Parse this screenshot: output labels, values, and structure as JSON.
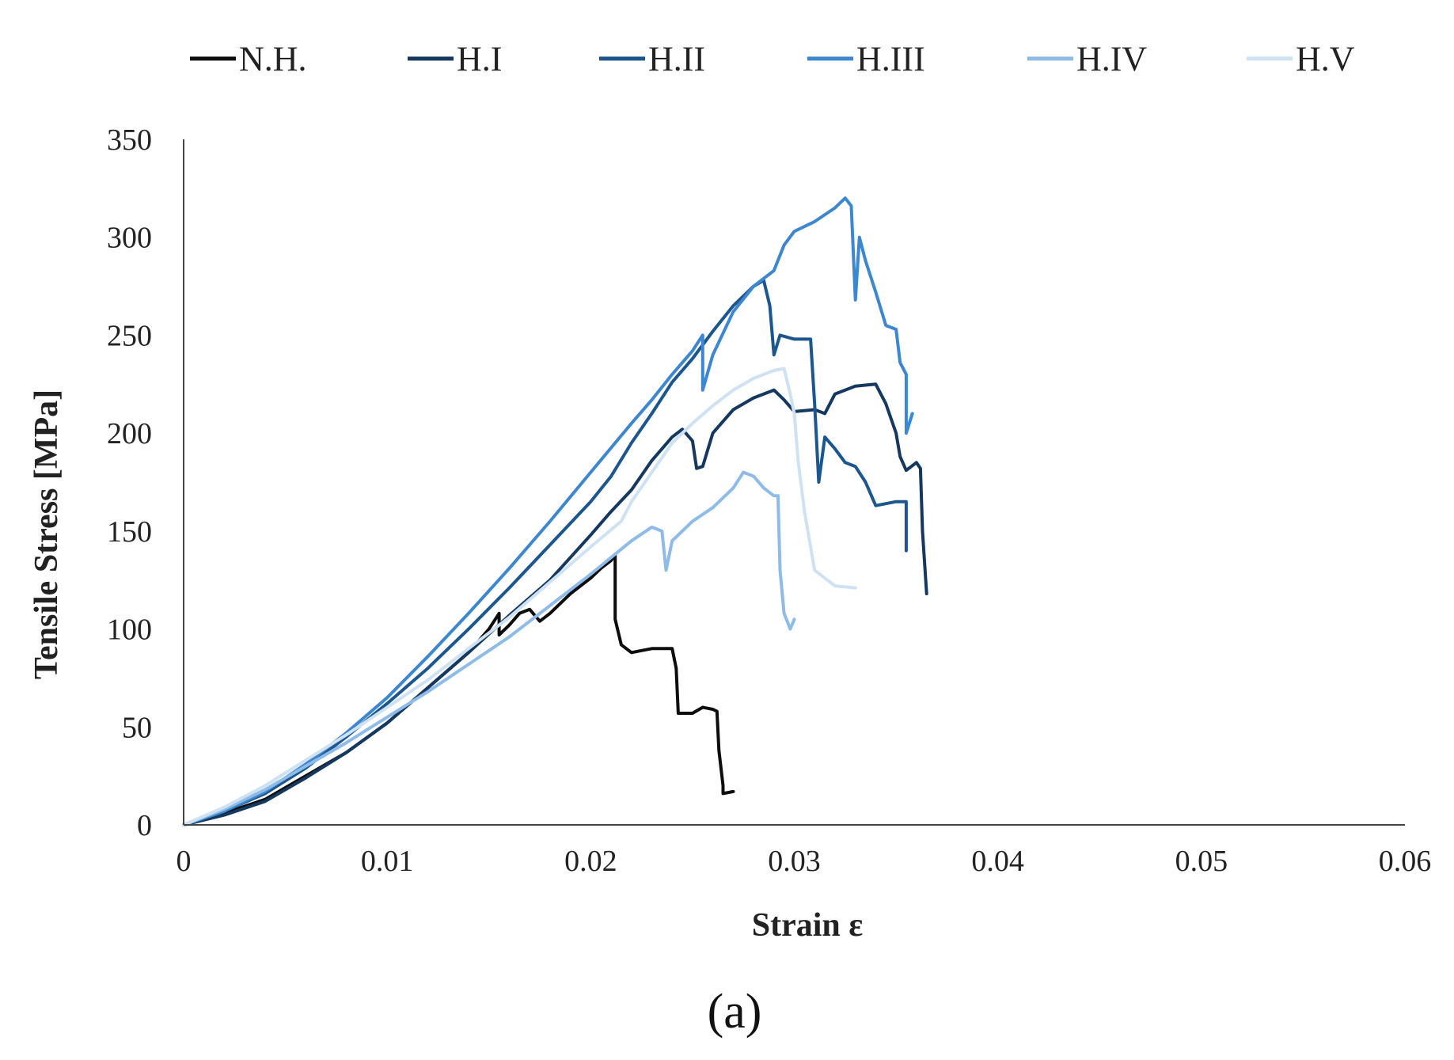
{
  "panel_label": "(a)",
  "chart_data": {
    "type": "line",
    "title": "",
    "xlabel": "Strain ε",
    "ylabel": "Tensile Stress [MPa]",
    "xlim": [
      0,
      0.06
    ],
    "ylim": [
      0,
      350
    ],
    "xticks": [
      0,
      0.01,
      0.02,
      0.03,
      0.04,
      0.05,
      0.06
    ],
    "xtick_labels": [
      "0",
      "0.01",
      "0.02",
      "0.03",
      "0.04",
      "0.05",
      "0.06"
    ],
    "yticks": [
      0,
      50,
      100,
      150,
      200,
      250,
      300,
      350
    ],
    "ytick_labels": [
      "0",
      "50",
      "100",
      "150",
      "200",
      "250",
      "300",
      "350"
    ],
    "grid": false,
    "legend_position": "top",
    "series": [
      {
        "name": "N.H.",
        "color": "#0d0d0d",
        "points": [
          [
            0,
            0
          ],
          [
            0.002,
            6
          ],
          [
            0.004,
            13
          ],
          [
            0.006,
            25
          ],
          [
            0.008,
            37
          ],
          [
            0.01,
            52
          ],
          [
            0.012,
            70
          ],
          [
            0.014,
            88
          ],
          [
            0.015,
            100
          ],
          [
            0.0155,
            108
          ],
          [
            0.0155,
            97
          ],
          [
            0.016,
            102
          ],
          [
            0.0165,
            108
          ],
          [
            0.017,
            110
          ],
          [
            0.0175,
            104
          ],
          [
            0.018,
            108
          ],
          [
            0.019,
            118
          ],
          [
            0.02,
            126
          ],
          [
            0.0205,
            131
          ],
          [
            0.021,
            135
          ],
          [
            0.0212,
            138
          ],
          [
            0.0212,
            105
          ],
          [
            0.0215,
            92
          ],
          [
            0.022,
            88
          ],
          [
            0.023,
            90
          ],
          [
            0.024,
            90
          ],
          [
            0.0242,
            80
          ],
          [
            0.0243,
            57
          ],
          [
            0.025,
            57
          ],
          [
            0.0255,
            60
          ],
          [
            0.026,
            59
          ],
          [
            0.0262,
            58
          ],
          [
            0.0263,
            38
          ],
          [
            0.0265,
            20
          ],
          [
            0.0265,
            16
          ],
          [
            0.027,
            17
          ]
        ]
      },
      {
        "name": "H.I",
        "color": "#14385f",
        "points": [
          [
            0,
            0
          ],
          [
            0.002,
            5
          ],
          [
            0.004,
            12
          ],
          [
            0.006,
            24
          ],
          [
            0.008,
            37
          ],
          [
            0.01,
            52
          ],
          [
            0.012,
            70
          ],
          [
            0.014,
            88
          ],
          [
            0.016,
            107
          ],
          [
            0.018,
            125
          ],
          [
            0.02,
            148
          ],
          [
            0.021,
            160
          ],
          [
            0.022,
            171
          ],
          [
            0.023,
            186
          ],
          [
            0.024,
            198
          ],
          [
            0.0245,
            202
          ],
          [
            0.025,
            196
          ],
          [
            0.0252,
            182
          ],
          [
            0.0255,
            183
          ],
          [
            0.026,
            200
          ],
          [
            0.027,
            212
          ],
          [
            0.028,
            218
          ],
          [
            0.029,
            222
          ],
          [
            0.0295,
            217
          ],
          [
            0.03,
            211
          ],
          [
            0.031,
            212
          ],
          [
            0.0315,
            210
          ],
          [
            0.032,
            220
          ],
          [
            0.033,
            224
          ],
          [
            0.034,
            225
          ],
          [
            0.0345,
            215
          ],
          [
            0.035,
            200
          ],
          [
            0.0352,
            188
          ],
          [
            0.0355,
            181
          ],
          [
            0.036,
            185
          ],
          [
            0.0362,
            182
          ],
          [
            0.0363,
            150
          ],
          [
            0.0365,
            118
          ]
        ]
      },
      {
        "name": "H.II",
        "color": "#1c568f",
        "points": [
          [
            0,
            0
          ],
          [
            0.002,
            7
          ],
          [
            0.004,
            16
          ],
          [
            0.006,
            29
          ],
          [
            0.008,
            45
          ],
          [
            0.01,
            62
          ],
          [
            0.012,
            80
          ],
          [
            0.014,
            100
          ],
          [
            0.016,
            121
          ],
          [
            0.018,
            143
          ],
          [
            0.02,
            165
          ],
          [
            0.021,
            178
          ],
          [
            0.022,
            195
          ],
          [
            0.023,
            210
          ],
          [
            0.024,
            226
          ],
          [
            0.025,
            238
          ],
          [
            0.026,
            252
          ],
          [
            0.027,
            265
          ],
          [
            0.028,
            275
          ],
          [
            0.0285,
            278
          ],
          [
            0.0288,
            265
          ],
          [
            0.029,
            240
          ],
          [
            0.0293,
            250
          ],
          [
            0.03,
            248
          ],
          [
            0.0308,
            248
          ],
          [
            0.031,
            215
          ],
          [
            0.0312,
            175
          ],
          [
            0.0315,
            198
          ],
          [
            0.032,
            192
          ],
          [
            0.0325,
            185
          ],
          [
            0.033,
            183
          ],
          [
            0.0335,
            175
          ],
          [
            0.034,
            163
          ],
          [
            0.035,
            165
          ],
          [
            0.0355,
            165
          ],
          [
            0.0355,
            140
          ]
        ]
      },
      {
        "name": "H.III",
        "color": "#3c87cf",
        "points": [
          [
            0,
            0
          ],
          [
            0.002,
            7
          ],
          [
            0.004,
            17
          ],
          [
            0.006,
            31
          ],
          [
            0.008,
            47
          ],
          [
            0.01,
            65
          ],
          [
            0.012,
            86
          ],
          [
            0.014,
            108
          ],
          [
            0.016,
            131
          ],
          [
            0.018,
            155
          ],
          [
            0.02,
            180
          ],
          [
            0.022,
            205
          ],
          [
            0.023,
            217
          ],
          [
            0.024,
            230
          ],
          [
            0.025,
            242
          ],
          [
            0.0255,
            250
          ],
          [
            0.0255,
            222
          ],
          [
            0.026,
            240
          ],
          [
            0.027,
            262
          ],
          [
            0.028,
            275
          ],
          [
            0.029,
            283
          ],
          [
            0.0295,
            296
          ],
          [
            0.03,
            303
          ],
          [
            0.031,
            308
          ],
          [
            0.032,
            315
          ],
          [
            0.0325,
            320
          ],
          [
            0.0328,
            316
          ],
          [
            0.033,
            268
          ],
          [
            0.0332,
            300
          ],
          [
            0.0335,
            288
          ],
          [
            0.034,
            272
          ],
          [
            0.0345,
            255
          ],
          [
            0.035,
            253
          ],
          [
            0.0352,
            236
          ],
          [
            0.0355,
            230
          ],
          [
            0.0355,
            200
          ],
          [
            0.0358,
            210
          ]
        ]
      },
      {
        "name": "H.IV",
        "color": "#8ebbe8",
        "points": [
          [
            0,
            0
          ],
          [
            0.002,
            8
          ],
          [
            0.004,
            18
          ],
          [
            0.006,
            30
          ],
          [
            0.008,
            42
          ],
          [
            0.01,
            55
          ],
          [
            0.012,
            68
          ],
          [
            0.014,
            82
          ],
          [
            0.016,
            96
          ],
          [
            0.018,
            112
          ],
          [
            0.02,
            128
          ],
          [
            0.022,
            145
          ],
          [
            0.023,
            152
          ],
          [
            0.0235,
            150
          ],
          [
            0.0237,
            130
          ],
          [
            0.024,
            145
          ],
          [
            0.025,
            155
          ],
          [
            0.026,
            162
          ],
          [
            0.027,
            172
          ],
          [
            0.0275,
            180
          ],
          [
            0.028,
            178
          ],
          [
            0.0285,
            172
          ],
          [
            0.029,
            168
          ],
          [
            0.0292,
            168
          ],
          [
            0.0293,
            130
          ],
          [
            0.0295,
            108
          ],
          [
            0.0298,
            100
          ],
          [
            0.03,
            105
          ]
        ]
      },
      {
        "name": "H.V",
        "color": "#cfe2f4",
        "points": [
          [
            0,
            0
          ],
          [
            0.002,
            9
          ],
          [
            0.004,
            20
          ],
          [
            0.006,
            33
          ],
          [
            0.008,
            46
          ],
          [
            0.01,
            60
          ],
          [
            0.012,
            74
          ],
          [
            0.014,
            90
          ],
          [
            0.016,
            106
          ],
          [
            0.018,
            124
          ],
          [
            0.02,
            142
          ],
          [
            0.0215,
            155
          ],
          [
            0.022,
            165
          ],
          [
            0.023,
            180
          ],
          [
            0.024,
            195
          ],
          [
            0.025,
            205
          ],
          [
            0.026,
            214
          ],
          [
            0.027,
            222
          ],
          [
            0.028,
            228
          ],
          [
            0.029,
            232
          ],
          [
            0.0295,
            233
          ],
          [
            0.0298,
            220
          ],
          [
            0.03,
            210
          ],
          [
            0.0302,
            185
          ],
          [
            0.0305,
            160
          ],
          [
            0.031,
            130
          ],
          [
            0.032,
            122
          ],
          [
            0.033,
            121
          ]
        ]
      }
    ]
  }
}
